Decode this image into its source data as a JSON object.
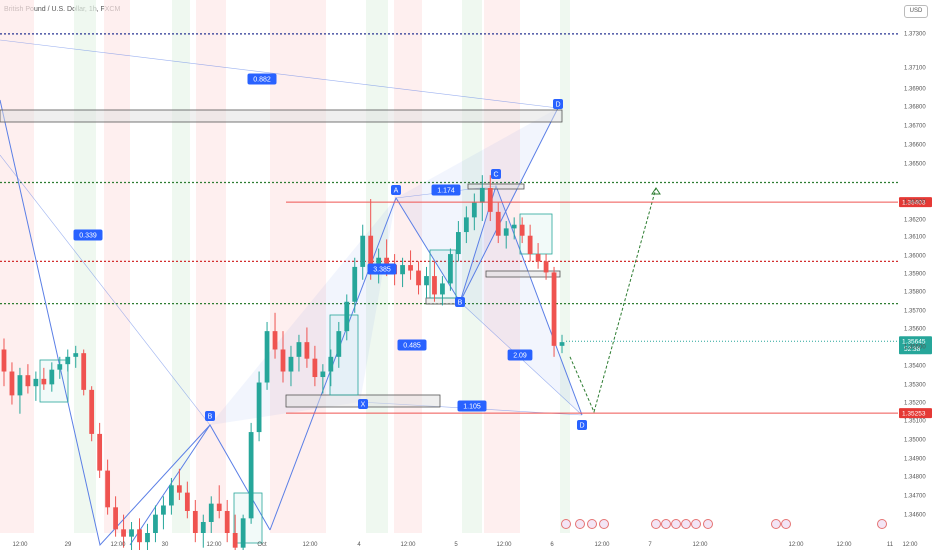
{
  "header": {
    "symbol_title": "British Pound / U.S. Dollar, 1h, FXCM",
    "currency": "USD"
  },
  "colors": {
    "up": "#26a69a",
    "down": "#ef5350",
    "pattern": "#5b7fe6",
    "green_dotted": "#2e7d32",
    "red_dotted": "#d32f2f",
    "navy_dotted": "#283593",
    "label_blue": "#2962ff",
    "last_price_bg": "#26a69a",
    "red_level_bg": "#e53935"
  },
  "chart_data": {
    "type": "candlestick",
    "title": "British Pound / U.S. Dollar, 1h, FXCM",
    "ylim": [
      1.346,
      1.3745
    ],
    "y_ticks": [
      "1.37300",
      "1.37100",
      "1.36900",
      "1.36800",
      "1.36700",
      "1.36600",
      "1.36500",
      "1.36300",
      "1.36200",
      "1.36100",
      "1.36000",
      "1.35900",
      "1.35800",
      "1.35700",
      "1.35600",
      "1.35500",
      "1.35400",
      "1.35300",
      "1.35200",
      "1.35100",
      "1.35000",
      "1.34900",
      "1.34800",
      "1.34700",
      "1.34600"
    ],
    "x_ticks": [
      "12:00",
      "29",
      "12:00",
      "30",
      "12:00",
      "Oct",
      "12:00",
      "4",
      "12:00",
      "5",
      "12:00",
      "6",
      "12:00",
      "7",
      "12:00",
      "12:00",
      "12:00",
      "11",
      "12:00"
    ],
    "price_levels": [
      {
        "price": 1.36403,
        "label": "1.36403",
        "style": "solid-red"
      },
      {
        "price": 1.35645,
        "label": "1.35645",
        "sublabel": "52:38",
        "style": "last-price"
      },
      {
        "price": 1.35253,
        "label": "1.35253",
        "style": "solid-red"
      }
    ],
    "dotted_levels": [
      {
        "price": 1.3732,
        "color": "navy"
      },
      {
        "price": 1.3651,
        "color": "green"
      },
      {
        "price": 1.3608,
        "color": "red"
      },
      {
        "price": 1.3585,
        "color": "green"
      }
    ],
    "harmonic_points": [
      {
        "label": "B",
        "price": 1.3516
      },
      {
        "label": "X",
        "price": 1.3539
      },
      {
        "label": "A",
        "price": 1.3642
      },
      {
        "label": "B",
        "price": 1.3585
      },
      {
        "label": "C",
        "price": 1.3655
      },
      {
        "label": "D",
        "price": 1.3695
      },
      {
        "label": "D",
        "price": 1.352
      }
    ],
    "ratios": [
      "0.882",
      "0.339",
      "1.174",
      "3.385",
      "0.485",
      "2.09",
      "1.105"
    ],
    "projection": {
      "points_price": [
        1.3556,
        1.3526,
        1.3648
      ]
    },
    "candles": [
      [
        1.356,
        1.3566,
        1.354,
        1.3548
      ],
      [
        1.3548,
        1.3553,
        1.353,
        1.3535
      ],
      [
        1.3535,
        1.355,
        1.3525,
        1.3546
      ],
      [
        1.3546,
        1.3552,
        1.3536,
        1.354
      ],
      [
        1.354,
        1.3548,
        1.3532,
        1.3544
      ],
      [
        1.3544,
        1.355,
        1.3538,
        1.3541
      ],
      [
        1.3541,
        1.3553,
        1.3537,
        1.3549
      ],
      [
        1.3549,
        1.3556,
        1.3544,
        1.3552
      ],
      [
        1.3552,
        1.356,
        1.3548,
        1.3556
      ],
      [
        1.3556,
        1.3562,
        1.355,
        1.3558
      ],
      [
        1.3558,
        1.356,
        1.3535,
        1.3538
      ],
      [
        1.3538,
        1.354,
        1.351,
        1.3514
      ],
      [
        1.3514,
        1.352,
        1.349,
        1.3494
      ],
      [
        1.3494,
        1.35,
        1.347,
        1.3474
      ],
      [
        1.3474,
        1.348,
        1.3458,
        1.3462
      ],
      [
        1.3462,
        1.347,
        1.3452,
        1.3458
      ],
      [
        1.3458,
        1.3466,
        1.345,
        1.3462
      ],
      [
        1.3462,
        1.3468,
        1.345,
        1.3455
      ],
      [
        1.3455,
        1.3465,
        1.3448,
        1.346
      ],
      [
        1.346,
        1.3475,
        1.3455,
        1.347
      ],
      [
        1.347,
        1.348,
        1.3462,
        1.3475
      ],
      [
        1.3475,
        1.349,
        1.347,
        1.3486
      ],
      [
        1.3486,
        1.3495,
        1.3478,
        1.3482
      ],
      [
        1.3482,
        1.3488,
        1.3468,
        1.3472
      ],
      [
        1.3472,
        1.3478,
        1.3455,
        1.346
      ],
      [
        1.346,
        1.347,
        1.3452,
        1.3466
      ],
      [
        1.3466,
        1.348,
        1.346,
        1.3476
      ],
      [
        1.3476,
        1.3486,
        1.3468,
        1.3472
      ],
      [
        1.3472,
        1.3478,
        1.3455,
        1.346
      ],
      [
        1.346,
        1.347,
        1.3448,
        1.3452
      ],
      [
        1.3452,
        1.347,
        1.3448,
        1.3468
      ],
      [
        1.3468,
        1.352,
        1.3465,
        1.3515
      ],
      [
        1.3515,
        1.3548,
        1.351,
        1.3542
      ],
      [
        1.3542,
        1.3575,
        1.3538,
        1.357
      ],
      [
        1.357,
        1.358,
        1.3555,
        1.356
      ],
      [
        1.356,
        1.357,
        1.3542,
        1.3548
      ],
      [
        1.3548,
        1.3562,
        1.354,
        1.3556
      ],
      [
        1.3556,
        1.3568,
        1.3548,
        1.3564
      ],
      [
        1.3564,
        1.3572,
        1.355,
        1.3555
      ],
      [
        1.3555,
        1.3562,
        1.354,
        1.3545
      ],
      [
        1.3545,
        1.3552,
        1.3536,
        1.3548
      ],
      [
        1.3548,
        1.356,
        1.354,
        1.3556
      ],
      [
        1.3556,
        1.3575,
        1.355,
        1.357
      ],
      [
        1.357,
        1.359,
        1.3565,
        1.3586
      ],
      [
        1.3586,
        1.361,
        1.358,
        1.3605
      ],
      [
        1.3605,
        1.3628,
        1.3598,
        1.3622
      ],
      [
        1.3622,
        1.3642,
        1.3598,
        1.3604
      ],
      [
        1.3604,
        1.3615,
        1.3596,
        1.361
      ],
      [
        1.361,
        1.362,
        1.36,
        1.3606
      ],
      [
        1.3606,
        1.3612,
        1.3595,
        1.3601
      ],
      [
        1.3601,
        1.361,
        1.3594,
        1.3606
      ],
      [
        1.3606,
        1.3614,
        1.3598,
        1.3603
      ],
      [
        1.3603,
        1.3608,
        1.359,
        1.3595
      ],
      [
        1.3595,
        1.3605,
        1.3588,
        1.36
      ],
      [
        1.36,
        1.3608,
        1.3586,
        1.359
      ],
      [
        1.359,
        1.36,
        1.3584,
        1.3596
      ],
      [
        1.3596,
        1.3615,
        1.3592,
        1.3612
      ],
      [
        1.3612,
        1.363,
        1.3608,
        1.3624
      ],
      [
        1.3624,
        1.3638,
        1.3618,
        1.3632
      ],
      [
        1.3632,
        1.3645,
        1.3625,
        1.364
      ],
      [
        1.364,
        1.3655,
        1.363,
        1.3648
      ],
      [
        1.3648,
        1.3655,
        1.363,
        1.3635
      ],
      [
        1.3635,
        1.364,
        1.3618,
        1.3622
      ],
      [
        1.3622,
        1.363,
        1.3615,
        1.3626
      ],
      [
        1.3626,
        1.3632,
        1.362,
        1.3628
      ],
      [
        1.3628,
        1.3632,
        1.3618,
        1.3622
      ],
      [
        1.3622,
        1.3628,
        1.3608,
        1.3612
      ],
      [
        1.3612,
        1.3618,
        1.3604,
        1.3608
      ],
      [
        1.3608,
        1.3612,
        1.3598,
        1.3602
      ],
      [
        1.3602,
        1.3605,
        1.3556,
        1.3562
      ],
      [
        1.3562,
        1.3568,
        1.3558,
        1.3564
      ]
    ]
  },
  "events": [
    "event-flag-icon"
  ]
}
